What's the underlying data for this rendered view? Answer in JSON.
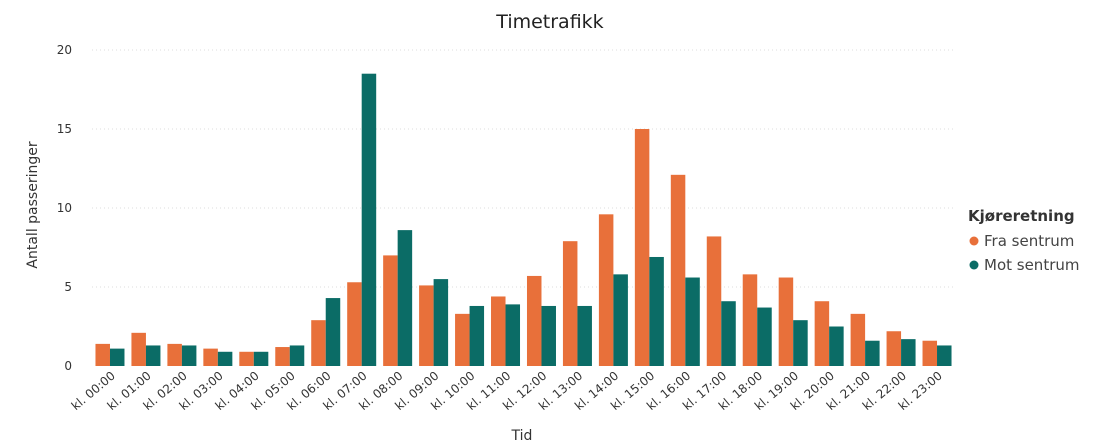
{
  "chart_data": {
    "type": "bar",
    "title": "Timetrafikk",
    "xlabel": "Tid",
    "ylabel": "Antall passeringer",
    "ylim": [
      0,
      20
    ],
    "yticks": [
      "0",
      "5",
      "10",
      "15",
      "20"
    ],
    "grid": true,
    "legend_position": "right",
    "legend_title": "Kjøreretning",
    "categories": [
      "kl. 00:00",
      "kl. 01:00",
      "kl. 02:00",
      "kl. 03:00",
      "kl. 04:00",
      "kl. 05:00",
      "kl. 06:00",
      "kl. 07:00",
      "kl. 08:00",
      "kl. 09:00",
      "kl. 10:00",
      "kl. 11:00",
      "kl. 12:00",
      "kl. 13:00",
      "kl. 14:00",
      "kl. 15:00",
      "kl. 16:00",
      "kl. 17:00",
      "kl. 18:00",
      "kl. 19:00",
      "kl. 20:00",
      "kl. 21:00",
      "kl. 22:00",
      "kl. 23:00"
    ],
    "series": [
      {
        "name": "Fra sentrum",
        "color": "#E8703A",
        "values": [
          1.4,
          2.1,
          1.4,
          1.1,
          0.9,
          1.2,
          2.9,
          5.3,
          7.0,
          5.1,
          3.3,
          4.4,
          5.7,
          7.9,
          9.6,
          15.0,
          12.1,
          8.2,
          5.8,
          5.6,
          4.1,
          3.3,
          2.2,
          1.6
        ]
      },
      {
        "name": "Mot sentrum",
        "color": "#0B6C66",
        "values": [
          1.1,
          1.3,
          1.3,
          0.9,
          0.9,
          1.3,
          4.3,
          18.5,
          8.6,
          5.5,
          3.8,
          3.9,
          3.8,
          3.8,
          5.8,
          6.9,
          5.6,
          4.1,
          3.7,
          2.9,
          2.5,
          1.6,
          1.7,
          1.3
        ]
      }
    ]
  }
}
